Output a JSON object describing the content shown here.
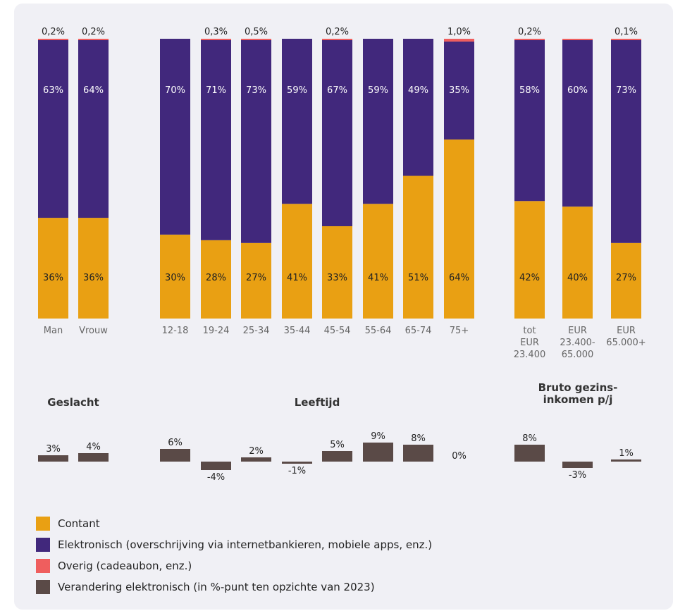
{
  "colors": {
    "background": "#f0f0f5",
    "contant": "#e9a013",
    "elektronisch": "#41287c",
    "overig": "#ef5e5e",
    "verandering": "#5a4a47"
  },
  "chart_data": {
    "type": "bar",
    "title": "",
    "ylim": [
      0,
      100
    ],
    "categories": [
      "Man",
      "Vrouw",
      "12-18",
      "19-24",
      "25-34",
      "35-44",
      "45-54",
      "55-64",
      "65-74",
      "75+",
      "tot EUR 23.400",
      "EUR 23.400-65.000",
      "EUR 65.000+"
    ],
    "category_lines": [
      [
        "Man"
      ],
      [
        "Vrouw"
      ],
      [
        "12-18"
      ],
      [
        "19-24"
      ],
      [
        "25-34"
      ],
      [
        "35-44"
      ],
      [
        "45-54"
      ],
      [
        "55-64"
      ],
      [
        "65-74"
      ],
      [
        "75+"
      ],
      [
        "tot",
        "EUR",
        "23.400"
      ],
      [
        "EUR",
        "23.400-",
        "65.000"
      ],
      [
        "EUR",
        "65.000+"
      ]
    ],
    "groups": [
      {
        "label_lines": [
          "Geslacht"
        ],
        "members": [
          0,
          1
        ]
      },
      {
        "label_lines": [
          "Leeftijd"
        ],
        "members": [
          2,
          3,
          4,
          5,
          6,
          7,
          8,
          9
        ]
      },
      {
        "label_lines": [
          "Bruto gezins-",
          "inkomen p/j"
        ],
        "members": [
          10,
          11,
          12
        ]
      }
    ],
    "series": [
      {
        "name": "Contant",
        "values": [
          36,
          36,
          30,
          28,
          27,
          41,
          33,
          41,
          51,
          64,
          42,
          40,
          27
        ]
      },
      {
        "name": "Elektronisch (overschrijving via internetbankieren, mobiele apps, enz.)",
        "values": [
          63,
          64,
          70,
          71,
          73,
          59,
          67,
          59,
          49,
          35,
          58,
          60,
          73
        ]
      },
      {
        "name": "Overig (cadeaubon, enz.)",
        "values": [
          0.2,
          0.2,
          0,
          0.3,
          0.5,
          0,
          0.2,
          0,
          0,
          1.0,
          0.2,
          0.3,
          0.1
        ]
      },
      {
        "name": "Verandering elektronisch (in %-punt ten opzichte van 2023)",
        "values": [
          3,
          4,
          6,
          -4,
          2,
          -1,
          5,
          9,
          8,
          0,
          8,
          -3,
          1
        ]
      }
    ],
    "contant_labels": [
      "36%",
      "36%",
      "30%",
      "28%",
      "27%",
      "41%",
      "33%",
      "41%",
      "51%",
      "64%",
      "42%",
      "40%",
      "27%"
    ],
    "elektronisch_labels": [
      "63%",
      "64%",
      "70%",
      "71%",
      "73%",
      "59%",
      "67%",
      "59%",
      "49%",
      "35%",
      "58%",
      "60%",
      "73%"
    ],
    "overig_labels": [
      "0,2%",
      "0,2%",
      "",
      "0,3%",
      "0,5%",
      "",
      "0,2%",
      "",
      "",
      "1,0%",
      "0,2%",
      "",
      "0,1%"
    ],
    "change_labels": [
      "3%",
      "4%",
      "6%",
      "-4%",
      "2%",
      "-1%",
      "5%",
      "9%",
      "8%",
      "0%",
      "8%",
      "-3%",
      "1%"
    ],
    "legend": [
      {
        "label": "Contant",
        "color": "#e9a013"
      },
      {
        "label": "Elektronisch (overschrijving via internetbankieren, mobiele apps, enz.)",
        "color": "#41287c"
      },
      {
        "label": "Overig (cadeaubon, enz.)",
        "color": "#ef5e5e"
      },
      {
        "label": "Verandering elektronisch (in %-punt ten opzichte van 2023)",
        "color": "#5a4a47"
      }
    ],
    "legend_position": "bottom-left",
    "grid": false
  }
}
